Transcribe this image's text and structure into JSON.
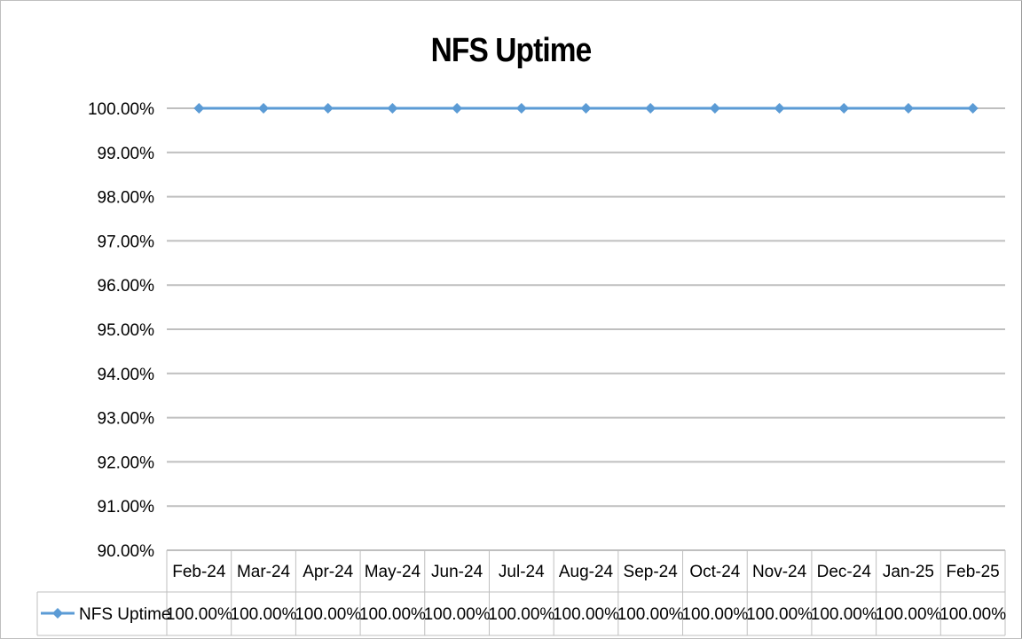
{
  "chart_data": {
    "type": "line",
    "title": "NFS Uptime",
    "categories": [
      "Feb-24",
      "Mar-24",
      "Apr-24",
      "May-24",
      "Jun-24",
      "Jul-24",
      "Aug-24",
      "Sep-24",
      "Oct-24",
      "Nov-24",
      "Dec-24",
      "Jan-25",
      "Feb-25"
    ],
    "series": [
      {
        "name": "NFS Uptime",
        "values": [
          100,
          100,
          100,
          100,
          100,
          100,
          100,
          100,
          100,
          100,
          100,
          100,
          100
        ],
        "color": "#5b9bd5"
      }
    ],
    "ylim": [
      90,
      100
    ],
    "y_ticks": [
      "90.00%",
      "91.00%",
      "92.00%",
      "93.00%",
      "94.00%",
      "95.00%",
      "96.00%",
      "97.00%",
      "98.00%",
      "99.00%",
      "100.00%"
    ],
    "data_table": {
      "row_label": "NFS Uptime",
      "cells": [
        "100.00%",
        "100.00%",
        "100.00%",
        "100.00%",
        "100.00%",
        "100.00%",
        "100.00%",
        "100.00%",
        "100.00%",
        "100.00%",
        "100.00%",
        "100.00%",
        "100.00%"
      ]
    },
    "grid": true,
    "legend": "data-table",
    "gridline_color": "#bfbfbf",
    "table_border_color": "#bfbfbf"
  }
}
